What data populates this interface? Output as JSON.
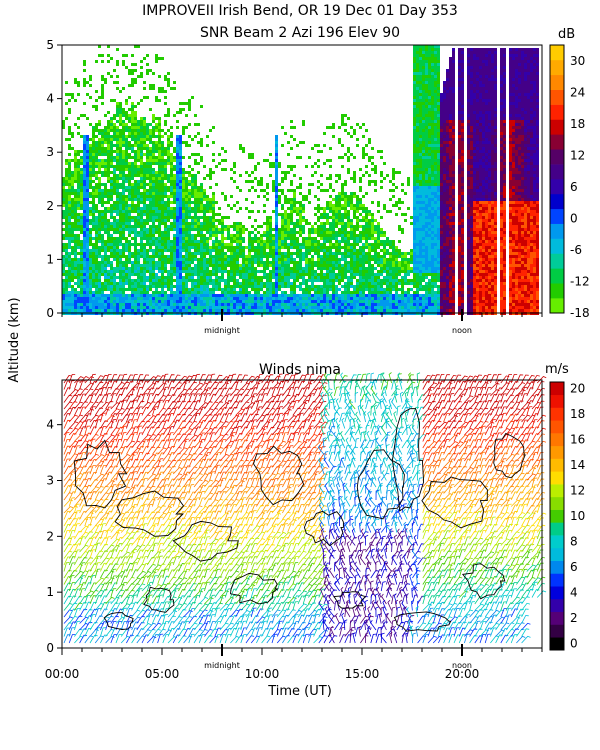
{
  "figure": {
    "title_line1": "IMPROVEII  Irish Bend, OR  19 Dec 01 Day 353",
    "title_line2": "SNR Beam 2 Azi 196 Elev 90",
    "shared_ylabel": "Altitude (km)",
    "shared_xlabel": "Time (UT)"
  },
  "chart_data": [
    {
      "type": "heatmap",
      "title": "SNR Beam 2 Azi 196 Elev 90",
      "xlabel": "",
      "ylabel": "Altitude (km)",
      "xlim_hours": [
        0,
        24
      ],
      "ylim": [
        0,
        5
      ],
      "yticks": [
        "0",
        "1",
        "2",
        "3",
        "4",
        "5"
      ],
      "time_markers": [
        {
          "label": "midnight",
          "hour": 8.0
        },
        {
          "label": "noon",
          "hour": 20.0
        }
      ],
      "colorbar": {
        "unit": "dB",
        "labels": [
          "-18",
          "-12",
          "-6",
          "0",
          "6",
          "12",
          "18",
          "24",
          "30"
        ],
        "bins": [
          -18,
          -15,
          -12,
          -9,
          -6,
          -3,
          0,
          3,
          6,
          9,
          12,
          15,
          18,
          21,
          24,
          27,
          30,
          33
        ],
        "colors": [
          "#66ee00",
          "#22cc00",
          "#00cc44",
          "#00cc99",
          "#00bbdd",
          "#0099ee",
          "#0044ff",
          "#0000cc",
          "#3300aa",
          "#440088",
          "#550066",
          "#880033",
          "#cc0000",
          "#ff2200",
          "#ff5500",
          "#ff8800",
          "#ffaa00",
          "#ffcc00"
        ]
      }
    },
    {
      "type": "scatter",
      "title": "Winds nima",
      "xlabel": "Time (UT)",
      "ylabel": "Altitude (km)",
      "xlim_hours": [
        0,
        24
      ],
      "ylim": [
        0,
        4.8
      ],
      "xticks": [
        "00:00",
        "05:00",
        "10:00",
        "15:00",
        "20:00"
      ],
      "xtick_hours": [
        0,
        5,
        10,
        15,
        20
      ],
      "yticks": [
        "0",
        "1",
        "2",
        "3",
        "4"
      ],
      "time_markers": [
        {
          "label": "midnight",
          "hour": 8.0
        },
        {
          "label": "noon",
          "hour": 20.0
        }
      ],
      "colorbar": {
        "unit": "m/s",
        "labels": [
          "0",
          "2",
          "4",
          "6",
          "8",
          "10",
          "12",
          "14",
          "16",
          "18",
          "20"
        ],
        "bins": [
          0,
          1,
          2,
          3,
          4,
          5,
          6,
          7,
          8,
          9,
          10,
          11,
          12,
          13,
          14,
          15,
          16,
          17,
          18,
          19,
          20,
          21
        ],
        "colors": [
          "#000000",
          "#330044",
          "#550077",
          "#3300aa",
          "#0000dd",
          "#0033ff",
          "#0088ee",
          "#00bbdd",
          "#00cccc",
          "#00cc88",
          "#44cc00",
          "#88dd00",
          "#bbee00",
          "#ffdd00",
          "#ffbb00",
          "#ff9900",
          "#ff7700",
          "#ff5500",
          "#ff3300",
          "#ee1100",
          "#cc0000"
        ]
      }
    }
  ]
}
